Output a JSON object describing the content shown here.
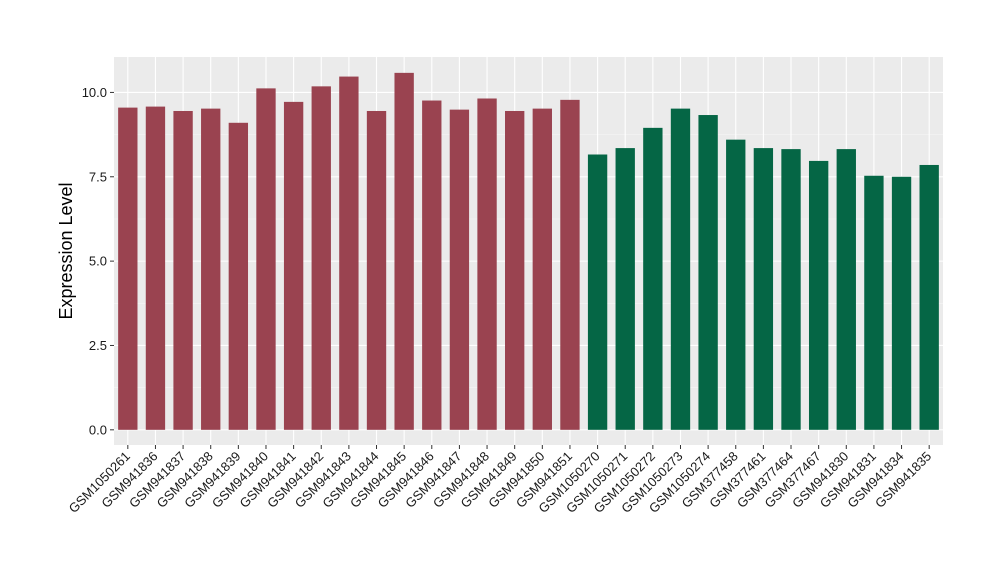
{
  "chart_data": {
    "type": "bar",
    "title": "",
    "xlabel": "",
    "ylabel": "Expression Level",
    "ylim": [
      -0.45,
      11.05
    ],
    "yticks": [
      0.0,
      2.5,
      5.0,
      7.5,
      10.0
    ],
    "ytick_labels": [
      "0.0",
      "2.5",
      "5.0",
      "7.5",
      "10.0"
    ],
    "grid": true,
    "legend": "none",
    "categories": [
      "GSM1050261",
      "GSM941836",
      "GSM941837",
      "GSM941838",
      "GSM941839",
      "GSM941840",
      "GSM941841",
      "GSM941842",
      "GSM941843",
      "GSM941844",
      "GSM941845",
      "GSM941846",
      "GSM941847",
      "GSM941848",
      "GSM941849",
      "GSM941850",
      "GSM941851",
      "GSM1050270",
      "GSM1050271",
      "GSM1050272",
      "GSM1050273",
      "GSM1050274",
      "GSM377458",
      "GSM377461",
      "GSM377464",
      "GSM377467",
      "GSM941830",
      "GSM941831",
      "GSM941834",
      "GSM941835"
    ],
    "values": [
      9.55,
      9.58,
      9.45,
      9.52,
      9.1,
      10.12,
      9.72,
      10.18,
      10.47,
      9.45,
      10.58,
      9.76,
      9.49,
      9.82,
      9.45,
      9.52,
      9.78,
      8.16,
      8.35,
      8.95,
      9.52,
      9.33,
      8.6,
      8.35,
      8.32,
      7.97,
      8.32,
      7.53,
      7.5,
      7.85
    ],
    "colors": [
      "#9a4350",
      "#9a4350",
      "#9a4350",
      "#9a4350",
      "#9a4350",
      "#9a4350",
      "#9a4350",
      "#9a4350",
      "#9a4350",
      "#9a4350",
      "#9a4350",
      "#9a4350",
      "#9a4350",
      "#9a4350",
      "#9a4350",
      "#9a4350",
      "#9a4350",
      "#056645",
      "#056645",
      "#056645",
      "#056645",
      "#056645",
      "#056645",
      "#056645",
      "#056645",
      "#056645",
      "#056645",
      "#056645",
      "#056645",
      "#056645"
    ]
  }
}
